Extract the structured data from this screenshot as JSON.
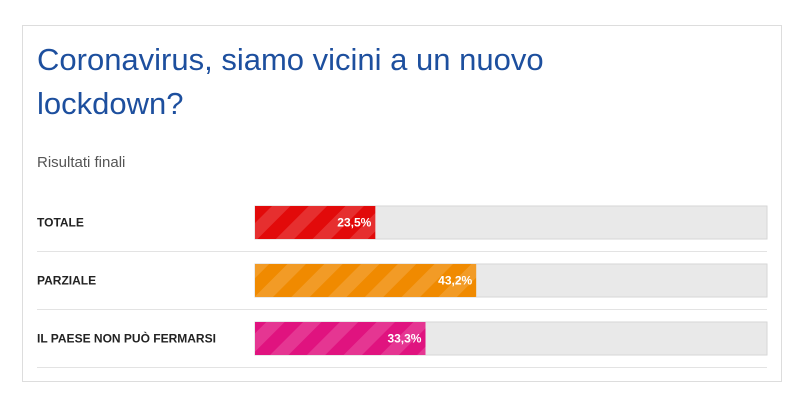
{
  "chart_data": {
    "type": "hbar",
    "title": [
      "Coronavirus, siamo vicini a un nuovo",
      "lockdown?"
    ],
    "subtitle": "Risultati finali",
    "categories": [
      "TOTALE",
      "PARZIALE",
      "IL PAESE NON PUÒ FERMARSI"
    ],
    "values": [
      23.5,
      43.2,
      33.3
    ],
    "value_labels": [
      "23,5%",
      "43,2%",
      "33,3%"
    ],
    "colors": [
      "#e20a0a",
      "#f08a00",
      "#e0137f"
    ],
    "xlim": [
      0,
      100
    ]
  }
}
